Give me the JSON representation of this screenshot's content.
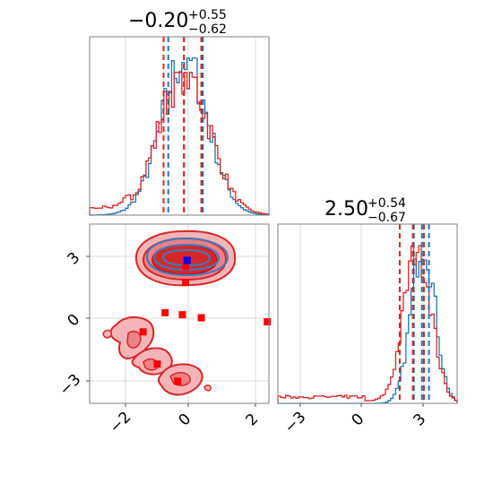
{
  "chart_data": [
    {
      "panel": "marginal-param1",
      "type": "histogram",
      "title": {
        "main": "−0.20",
        "sup": "+0.55",
        "sub": "−0.62"
      },
      "xlim": [
        -3.2,
        2.5
      ],
      "series": [
        {
          "name": "",
          "color": "#1f77b4",
          "quantiles": [
            -0.7,
            -0.2,
            0.4
          ]
        },
        {
          "name": "",
          "color": "#d62728",
          "quantiles": [
            -0.85,
            -0.2,
            0.35
          ]
        }
      ]
    },
    {
      "panel": "joint",
      "type": "scatter",
      "xlim": [
        -3.2,
        2.5
      ],
      "ylim": [
        -4.2,
        4.7
      ],
      "xticks": [
        -2,
        0,
        2
      ],
      "yticks": [
        3,
        0,
        -3
      ],
      "xtick_labels": [
        "−2",
        "0",
        "2"
      ],
      "ytick_labels": [
        "3",
        "0",
        "−3"
      ],
      "blue_marker": {
        "x": -0.1,
        "y": 2.9
      },
      "red_markers": [
        {
          "x": -0.15,
          "y": 2.6
        },
        {
          "x": -0.15,
          "y": 1.8
        },
        {
          "x": -0.8,
          "y": 0.3
        },
        {
          "x": -0.25,
          "y": 0.2
        },
        {
          "x": 0.35,
          "y": 0.05
        },
        {
          "x": 2.45,
          "y": -0.15
        },
        {
          "x": -1.5,
          "y": -0.65
        },
        {
          "x": -1.05,
          "y": -2.25
        },
        {
          "x": -0.4,
          "y": -3.1
        }
      ]
    },
    {
      "panel": "marginal-param2",
      "type": "histogram",
      "title": {
        "main": "2.50",
        "sup": "+0.54",
        "sub": "−0.67"
      },
      "xlim": [
        -4.2,
        4.7
      ],
      "xticks": [
        -3,
        0,
        3
      ],
      "xtick_labels": [
        "−3",
        "0",
        "3"
      ],
      "series": [
        {
          "name": "",
          "color": "#1f77b4",
          "quantiles": [
            2.55,
            2.95,
            3.3
          ]
        },
        {
          "name": "",
          "color": "#d62728",
          "quantiles": [
            1.85,
            2.5,
            3.05
          ]
        }
      ]
    }
  ]
}
